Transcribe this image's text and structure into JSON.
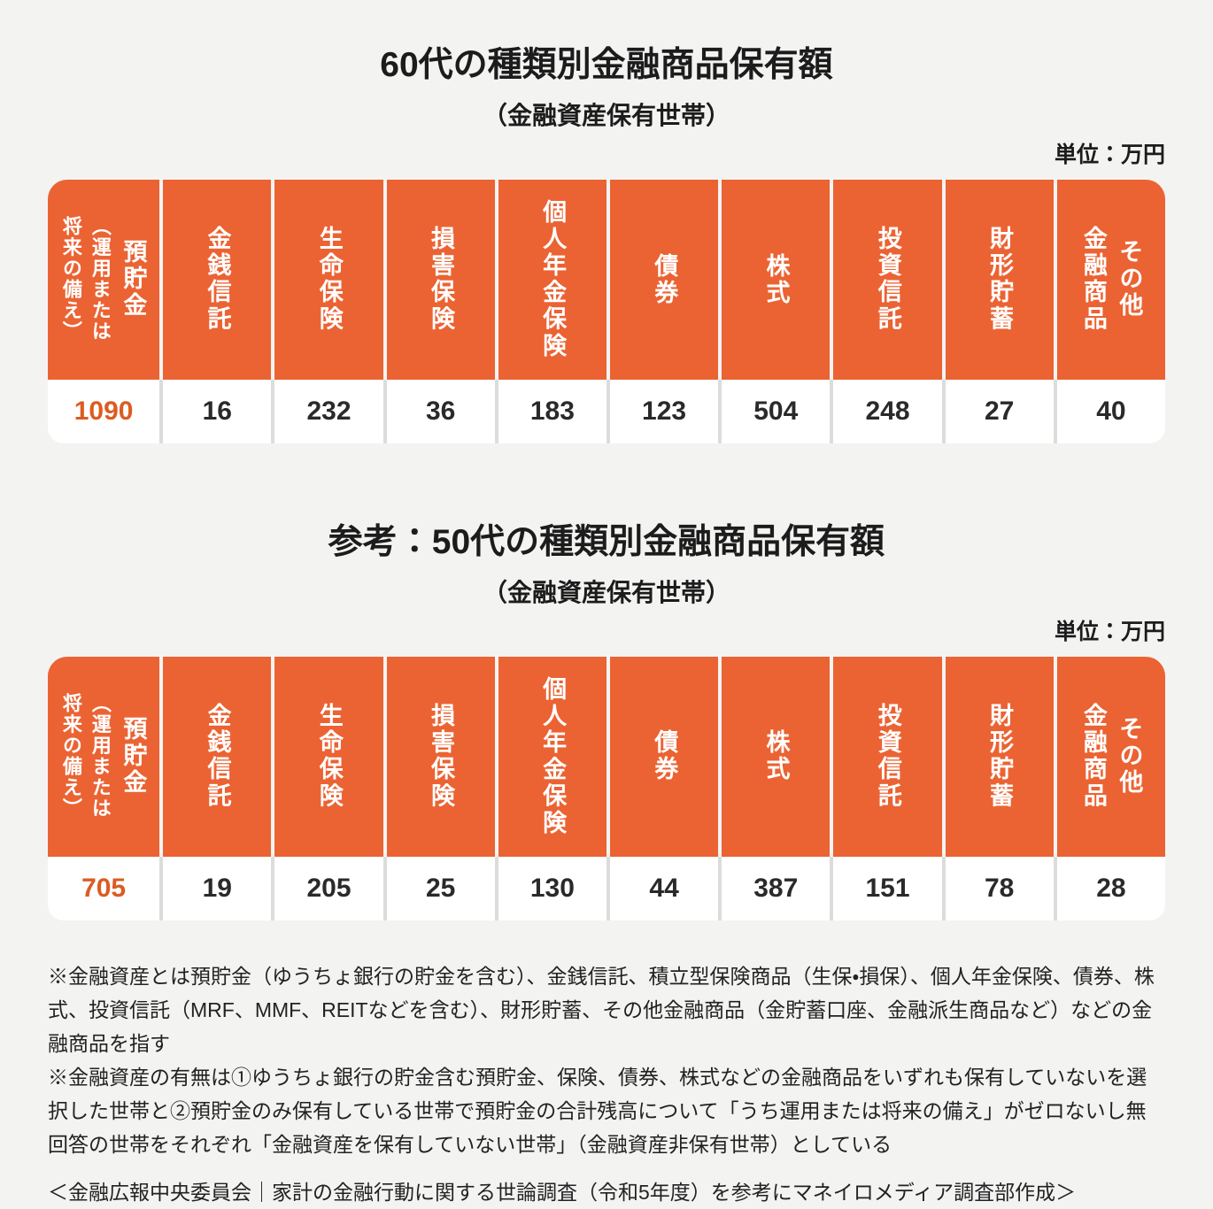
{
  "page": {
    "unit_label": "単位：万円"
  },
  "colors": {
    "header_orange": "#EB6333",
    "accent_value_orange": "#DB5C22",
    "background": "#F3F3F2",
    "value_divider": "#DCDCDB"
  },
  "columns": [
    {
      "main": "預貯金",
      "sub": "（運用または\n将来の備え）"
    },
    "金銭信託",
    "生命保険",
    "損害保険",
    "個人年金保険",
    "債券",
    "株式",
    "投資信託",
    "財形貯蓄",
    "その他\n金融商品"
  ],
  "chart_data": [
    {
      "type": "table",
      "title": "60代の種類別金融商品保有額",
      "subtitle": "（金融資産保有世帯）",
      "unit": "万円",
      "columns": [
        "預貯金（運用または将来の備え）",
        "金銭信託",
        "生命保険",
        "損害保険",
        "個人年金保険",
        "債券",
        "株式",
        "投資信託",
        "財形貯蓄",
        "その他金融商品"
      ],
      "values": [
        1090,
        16,
        232,
        36,
        183,
        123,
        504,
        248,
        27,
        40
      ]
    },
    {
      "type": "table",
      "title": "参考：50代の種類別金融商品保有額",
      "subtitle": "（金融資産保有世帯）",
      "unit": "万円",
      "columns": [
        "預貯金（運用または将来の備え）",
        "金銭信託",
        "生命保険",
        "損害保険",
        "個人年金保険",
        "債券",
        "株式",
        "投資信託",
        "財形貯蓄",
        "その他金融商品"
      ],
      "values": [
        705,
        19,
        205,
        25,
        130,
        44,
        387,
        151,
        78,
        28
      ]
    }
  ],
  "notes": [
    "※金融資産とは預貯金（ゆうちょ銀行の貯金を含む）、金銭信託、積立型保険商品（生保・損保）、個人年金保険、債券、株式、投資信託（MRF、MMF、REITなどを含む）、財形貯蓄、その他金融商品（金貯蓄口座、金融派生商品など）などの金融商品を指す",
    "※金融資産の有無は①ゆうちょ銀行の貯金含む預貯金、保険、債券、株式などの金融商品をいずれも保有していないを選択した世帯と②預貯金のみ保有している世帯で預貯金の合計残高について「うち運用または将来の備え」がゼロないし無回答の世帯をそれぞれ「金融資産を保有していない世帯」（金融資産非保有世帯）としている"
  ],
  "source": "＜金融広報中央委員会｜家計の金融行動に関する世論調査（令和5年度）を参考にマネイロメディア調査部作成＞"
}
